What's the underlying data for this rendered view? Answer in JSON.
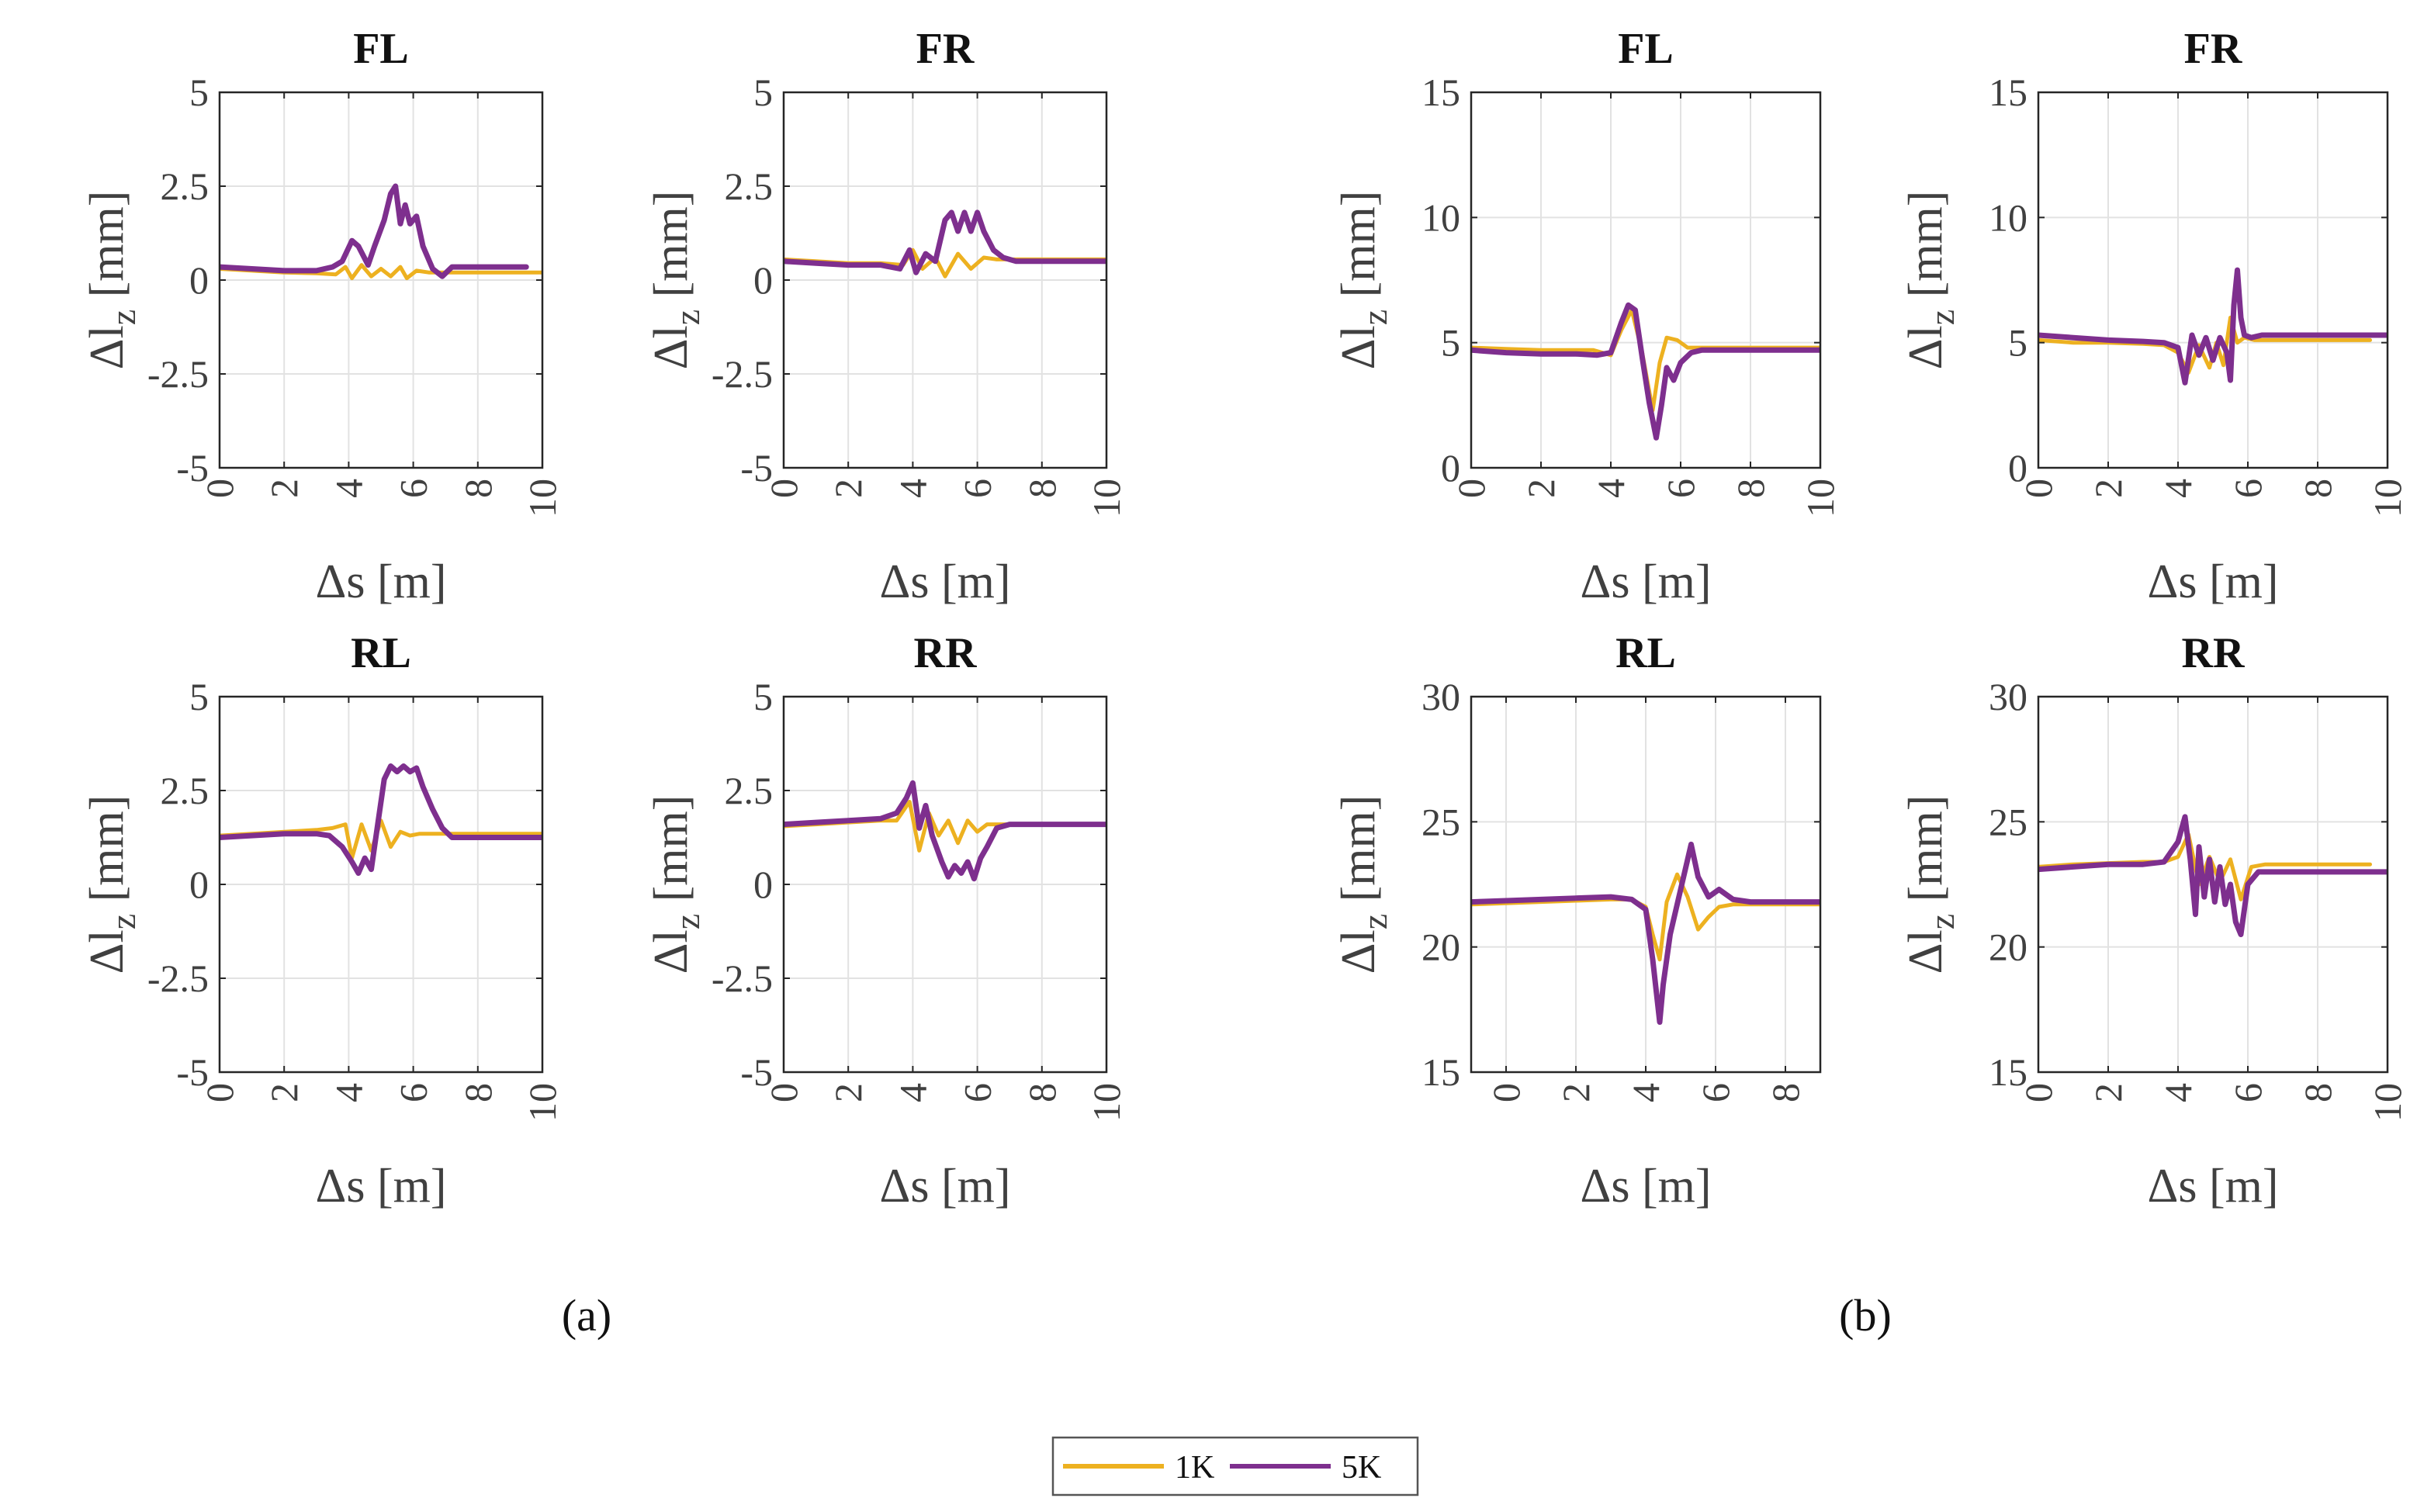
{
  "figure": {
    "panel_labels": [
      "(a)",
      "(b)"
    ],
    "legend": [
      {
        "label": "1K",
        "color": "#EDB120"
      },
      {
        "label": "5K",
        "color": "#7E2F8E"
      }
    ]
  },
  "chart_data": [
    {
      "type": "line",
      "group": "a",
      "title": "FL",
      "xlabel": "Δs [m]",
      "ylabel": "Δl_z [mm]",
      "xlim": [
        0,
        10
      ],
      "ylim": [
        -5,
        5
      ],
      "xticks": [
        0,
        2,
        4,
        6,
        8,
        10
      ],
      "yticks": [
        -5,
        -2.5,
        0,
        2.5,
        5
      ],
      "ytick_labels": [
        "-5",
        "-2.5",
        "0",
        "2.5",
        "5"
      ],
      "grid": true,
      "series": [
        {
          "name": "1K",
          "color": "#EDB120",
          "x": [
            0,
            1,
            2,
            3,
            3.6,
            3.9,
            4.1,
            4.4,
            4.7,
            5.0,
            5.3,
            5.6,
            5.8,
            6.1,
            6.5,
            7,
            8,
            9,
            9.5,
            10
          ],
          "y": [
            0.3,
            0.25,
            0.2,
            0.18,
            0.15,
            0.35,
            0.05,
            0.4,
            0.1,
            0.3,
            0.1,
            0.35,
            0.05,
            0.25,
            0.2,
            0.2,
            0.2,
            0.2,
            0.2,
            0.2
          ]
        },
        {
          "name": "5K",
          "color": "#7E2F8E",
          "x": [
            0,
            1,
            2,
            3,
            3.5,
            3.8,
            4.1,
            4.3,
            4.6,
            4.8,
            5.1,
            5.3,
            5.45,
            5.6,
            5.75,
            5.9,
            6.1,
            6.3,
            6.6,
            6.9,
            7.2,
            8,
            9,
            9.5
          ],
          "y": [
            0.35,
            0.3,
            0.25,
            0.25,
            0.35,
            0.5,
            1.05,
            0.9,
            0.4,
            0.9,
            1.6,
            2.3,
            2.5,
            1.5,
            2.0,
            1.5,
            1.7,
            0.9,
            0.3,
            0.1,
            0.35,
            0.35,
            0.35,
            0.35
          ]
        }
      ]
    },
    {
      "type": "line",
      "group": "a",
      "title": "FR",
      "xlabel": "Δs [m]",
      "ylabel": "Δl_z [mm]",
      "xlim": [
        0,
        10
      ],
      "ylim": [
        -5,
        5
      ],
      "xticks": [
        0,
        2,
        4,
        6,
        8,
        10
      ],
      "yticks": [
        -5,
        -2.5,
        0,
        2.5,
        5
      ],
      "ytick_labels": [
        "-5",
        "-2.5",
        "0",
        "2.5",
        "5"
      ],
      "grid": true,
      "series": [
        {
          "name": "1K",
          "color": "#EDB120",
          "x": [
            0,
            1,
            2,
            3,
            3.7,
            4.0,
            4.3,
            4.7,
            5.0,
            5.4,
            5.8,
            6.2,
            6.6,
            7,
            8,
            9,
            10
          ],
          "y": [
            0.55,
            0.5,
            0.45,
            0.45,
            0.4,
            0.8,
            0.3,
            0.6,
            0.1,
            0.7,
            0.3,
            0.6,
            0.55,
            0.55,
            0.55,
            0.55,
            0.55
          ]
        },
        {
          "name": "5K",
          "color": "#7E2F8E",
          "x": [
            0,
            1,
            2,
            3,
            3.6,
            3.9,
            4.1,
            4.4,
            4.7,
            5.0,
            5.2,
            5.4,
            5.6,
            5.8,
            6.0,
            6.2,
            6.5,
            6.8,
            7.2,
            8,
            9,
            10
          ],
          "y": [
            0.5,
            0.45,
            0.4,
            0.4,
            0.3,
            0.8,
            0.2,
            0.7,
            0.5,
            1.6,
            1.8,
            1.3,
            1.8,
            1.3,
            1.8,
            1.3,
            0.8,
            0.6,
            0.5,
            0.5,
            0.5,
            0.5
          ]
        }
      ]
    },
    {
      "type": "line",
      "group": "b",
      "title": "FL",
      "xlabel": "Δs [m]",
      "ylabel": "Δl_z [mm]",
      "xlim": [
        0,
        10
      ],
      "ylim": [
        0,
        15
      ],
      "xticks": [
        0,
        2,
        4,
        6,
        8,
        10
      ],
      "yticks": [
        0,
        5,
        10,
        15
      ],
      "ytick_labels": [
        "0",
        "5",
        "10",
        "15"
      ],
      "grid": true,
      "series": [
        {
          "name": "1K",
          "color": "#EDB120",
          "x": [
            0,
            1,
            2,
            3,
            3.5,
            4.0,
            4.3,
            4.6,
            4.9,
            5.2,
            5.4,
            5.6,
            5.9,
            6.2,
            6.6,
            7,
            8,
            9,
            10
          ],
          "y": [
            4.8,
            4.75,
            4.7,
            4.7,
            4.7,
            4.5,
            5.5,
            6.3,
            4.6,
            2.3,
            4.2,
            5.2,
            5.1,
            4.8,
            4.8,
            4.8,
            4.8,
            4.8,
            4.8
          ]
        },
        {
          "name": "5K",
          "color": "#7E2F8E",
          "x": [
            0,
            1,
            2,
            3,
            3.6,
            4.0,
            4.3,
            4.5,
            4.7,
            4.9,
            5.1,
            5.3,
            5.45,
            5.6,
            5.8,
            6.0,
            6.3,
            6.6,
            7,
            8,
            9,
            10
          ],
          "y": [
            4.7,
            4.6,
            4.55,
            4.55,
            4.5,
            4.6,
            5.8,
            6.5,
            6.3,
            4.4,
            2.6,
            1.2,
            2.5,
            4.0,
            3.5,
            4.2,
            4.6,
            4.7,
            4.7,
            4.7,
            4.7,
            4.7
          ]
        }
      ]
    },
    {
      "type": "line",
      "group": "b",
      "title": "FR",
      "xlabel": "Δs [m]",
      "ylabel": "Δl_z [mm]",
      "xlim": [
        0,
        10
      ],
      "ylim": [
        0,
        15
      ],
      "xticks": [
        0,
        2,
        4,
        6,
        8,
        10
      ],
      "yticks": [
        0,
        5,
        10,
        15
      ],
      "ytick_labels": [
        "0",
        "5",
        "10",
        "15"
      ],
      "grid": true,
      "series": [
        {
          "name": "1K",
          "color": "#EDB120",
          "x": [
            0,
            1,
            2,
            3,
            3.6,
            4.0,
            4.3,
            4.6,
            4.9,
            5.1,
            5.3,
            5.5,
            5.7,
            5.9,
            6.2,
            7,
            8,
            9,
            9.5
          ],
          "y": [
            5.1,
            5.0,
            5.0,
            4.95,
            4.9,
            4.6,
            3.8,
            4.9,
            4.0,
            5.0,
            4.1,
            6.0,
            5.0,
            5.2,
            5.1,
            5.1,
            5.1,
            5.1,
            5.1
          ]
        },
        {
          "name": "5K",
          "color": "#7E2F8E",
          "x": [
            0,
            1,
            2,
            3,
            3.6,
            4.0,
            4.2,
            4.4,
            4.6,
            4.8,
            5.0,
            5.2,
            5.4,
            5.5,
            5.6,
            5.7,
            5.8,
            5.9,
            6.1,
            6.4,
            7,
            8,
            9,
            10
          ],
          "y": [
            5.3,
            5.2,
            5.1,
            5.05,
            5.0,
            4.8,
            3.4,
            5.3,
            4.5,
            5.2,
            4.3,
            5.2,
            4.6,
            3.5,
            6.5,
            7.9,
            6.0,
            5.3,
            5.2,
            5.3,
            5.3,
            5.3,
            5.3,
            5.3
          ]
        }
      ]
    },
    {
      "type": "line",
      "group": "a",
      "title": "RL",
      "xlabel": "Δs [m]",
      "ylabel": "Δl_z [mm]",
      "xlim": [
        0,
        10
      ],
      "ylim": [
        -5,
        5
      ],
      "xticks": [
        0,
        2,
        4,
        6,
        8,
        10
      ],
      "yticks": [
        -5,
        -2.5,
        0,
        2.5,
        5
      ],
      "ytick_labels": [
        "-5",
        "-2.5",
        "0",
        "2.5",
        "5"
      ],
      "grid": true,
      "series": [
        {
          "name": "1K",
          "color": "#EDB120",
          "x": [
            0,
            1,
            2,
            3,
            3.5,
            3.9,
            4.1,
            4.4,
            4.7,
            5.0,
            5.3,
            5.6,
            5.9,
            6.2,
            6.6,
            7,
            8,
            9,
            10
          ],
          "y": [
            1.3,
            1.35,
            1.4,
            1.45,
            1.5,
            1.6,
            0.7,
            1.6,
            0.9,
            1.7,
            1.0,
            1.4,
            1.3,
            1.35,
            1.35,
            1.35,
            1.35,
            1.35,
            1.35
          ]
        },
        {
          "name": "5K",
          "color": "#7E2F8E",
          "x": [
            0,
            1,
            2,
            3,
            3.4,
            3.8,
            4.1,
            4.3,
            4.5,
            4.7,
            4.9,
            5.1,
            5.3,
            5.5,
            5.7,
            5.9,
            6.1,
            6.3,
            6.6,
            6.9,
            7.2,
            8,
            9,
            10
          ],
          "y": [
            1.25,
            1.3,
            1.35,
            1.35,
            1.3,
            1.0,
            0.6,
            0.3,
            0.7,
            0.4,
            1.6,
            2.8,
            3.15,
            3.0,
            3.15,
            3.0,
            3.1,
            2.6,
            2.0,
            1.5,
            1.25,
            1.25,
            1.25,
            1.25
          ]
        }
      ]
    },
    {
      "type": "line",
      "group": "a",
      "title": "RR",
      "xlabel": "Δs [m]",
      "ylabel": "Δl_z [mm]",
      "xlim": [
        0,
        10
      ],
      "ylim": [
        -5,
        5
      ],
      "xticks": [
        0,
        2,
        4,
        6,
        8,
        10
      ],
      "yticks": [
        -5,
        -2.5,
        0,
        2.5,
        5
      ],
      "ytick_labels": [
        "-5",
        "-2.5",
        "0",
        "2.5",
        "5"
      ],
      "grid": true,
      "series": [
        {
          "name": "1K",
          "color": "#EDB120",
          "x": [
            0,
            1,
            2,
            3,
            3.5,
            3.9,
            4.2,
            4.5,
            4.8,
            5.1,
            5.4,
            5.7,
            6.0,
            6.3,
            6.6,
            7,
            8,
            9,
            10
          ],
          "y": [
            1.55,
            1.6,
            1.65,
            1.7,
            1.7,
            2.2,
            0.9,
            1.9,
            1.3,
            1.7,
            1.1,
            1.7,
            1.4,
            1.6,
            1.6,
            1.6,
            1.6,
            1.6,
            1.6
          ]
        },
        {
          "name": "5K",
          "color": "#7E2F8E",
          "x": [
            0,
            1,
            2,
            3,
            3.5,
            3.8,
            4.0,
            4.2,
            4.4,
            4.6,
            4.9,
            5.1,
            5.3,
            5.5,
            5.7,
            5.9,
            6.1,
            6.3,
            6.6,
            7,
            8,
            9,
            10
          ],
          "y": [
            1.6,
            1.65,
            1.7,
            1.75,
            1.9,
            2.3,
            2.7,
            1.5,
            2.1,
            1.3,
            0.6,
            0.2,
            0.5,
            0.3,
            0.6,
            0.15,
            0.7,
            1.0,
            1.5,
            1.6,
            1.6,
            1.6,
            1.6
          ]
        }
      ]
    },
    {
      "type": "line",
      "group": "b",
      "title": "RL",
      "xlabel": "Δs [m]",
      "ylabel": "Δl_z [mm]",
      "xlim": [
        -1,
        9
      ],
      "ylim": [
        15,
        30
      ],
      "xticks": [
        0,
        2,
        4,
        6,
        8
      ],
      "yticks": [
        15,
        20,
        25,
        30
      ],
      "ytick_labels": [
        "15",
        "20",
        "25",
        "30"
      ],
      "grid": true,
      "series": [
        {
          "name": "1K",
          "color": "#EDB120",
          "x": [
            -1,
            0,
            1,
            2,
            3,
            3.6,
            4.0,
            4.2,
            4.4,
            4.6,
            4.9,
            5.2,
            5.5,
            5.8,
            6.1,
            6.5,
            7,
            8,
            9
          ],
          "y": [
            21.7,
            21.75,
            21.8,
            21.85,
            21.9,
            21.9,
            21.6,
            20.5,
            19.5,
            21.8,
            22.9,
            22.0,
            20.7,
            21.2,
            21.6,
            21.7,
            21.7,
            21.7,
            21.7
          ]
        },
        {
          "name": "5K",
          "color": "#7E2F8E",
          "x": [
            -1,
            0,
            1,
            2,
            3,
            3.6,
            4.0,
            4.2,
            4.4,
            4.5,
            4.7,
            5.0,
            5.3,
            5.5,
            5.8,
            6.1,
            6.5,
            7,
            8,
            9
          ],
          "y": [
            21.8,
            21.85,
            21.9,
            21.95,
            22.0,
            21.9,
            21.5,
            19.5,
            17.0,
            18.5,
            20.5,
            22.3,
            24.1,
            22.8,
            22.0,
            22.3,
            21.9,
            21.8,
            21.8,
            21.8
          ]
        }
      ]
    },
    {
      "type": "line",
      "group": "b",
      "title": "RR",
      "xlabel": "Δs [m]",
      "ylabel": "Δl_z [mm]",
      "xlim": [
        0,
        10
      ],
      "ylim": [
        15,
        30
      ],
      "xticks": [
        0,
        2,
        4,
        6,
        8,
        10
      ],
      "yticks": [
        15,
        20,
        25,
        30
      ],
      "ytick_labels": [
        "15",
        "20",
        "25",
        "30"
      ],
      "grid": true,
      "series": [
        {
          "name": "1K",
          "color": "#EDB120",
          "x": [
            0,
            1,
            2,
            3,
            3.6,
            4.0,
            4.3,
            4.6,
            4.9,
            5.2,
            5.5,
            5.8,
            6.1,
            6.5,
            7,
            8,
            9,
            9.5
          ],
          "y": [
            23.2,
            23.3,
            23.35,
            23.4,
            23.4,
            23.6,
            24.5,
            22.5,
            23.6,
            22.6,
            23.5,
            21.9,
            23.2,
            23.3,
            23.3,
            23.3,
            23.3,
            23.3
          ]
        },
        {
          "name": "5K",
          "color": "#7E2F8E",
          "x": [
            0,
            1,
            2,
            3,
            3.6,
            4.0,
            4.2,
            4.35,
            4.5,
            4.6,
            4.75,
            4.9,
            5.05,
            5.2,
            5.35,
            5.5,
            5.65,
            5.8,
            6.0,
            6.3,
            7,
            8,
            9,
            10
          ],
          "y": [
            23.1,
            23.2,
            23.3,
            23.3,
            23.4,
            24.2,
            25.2,
            23.5,
            21.3,
            24.0,
            22.0,
            23.5,
            21.8,
            23.2,
            21.7,
            22.5,
            21.0,
            20.5,
            22.5,
            23.0,
            23.0,
            23.0,
            23.0,
            23.0
          ]
        }
      ]
    }
  ]
}
